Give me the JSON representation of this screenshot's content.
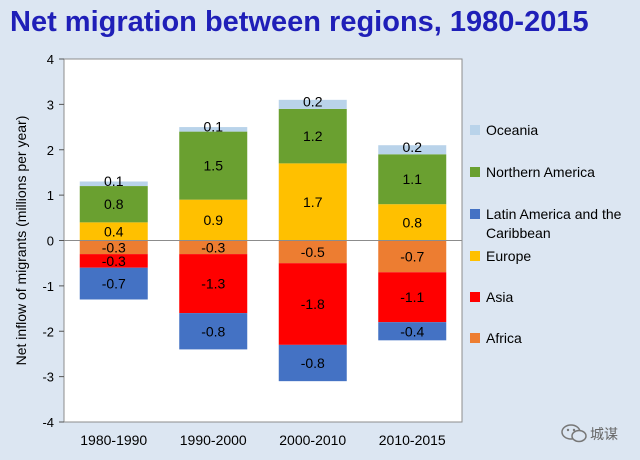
{
  "chart_data": {
    "type": "bar",
    "stacked": true,
    "title": "Net migration between regions, 1980-2015",
    "ylabel": "Net inflow of migrants (millions per year)",
    "xlabel": "",
    "ylim": [
      -4,
      4
    ],
    "yticks": [
      4,
      3,
      2,
      1,
      0,
      -1,
      -2,
      -3,
      -4
    ],
    "categories": [
      "1980-1990",
      "1990-2000",
      "2000-2010",
      "2010-2015"
    ],
    "series": [
      {
        "name": "Oceania",
        "color": "#b9d3ea",
        "values": [
          0.1,
          0.1,
          0.2,
          0.2
        ]
      },
      {
        "name": "Northern America",
        "color": "#6aa030",
        "values": [
          0.8,
          1.5,
          1.2,
          1.1
        ]
      },
      {
        "name": "Latin America and the Caribbean",
        "color": "#4472c4",
        "values": [
          -0.7,
          -0.8,
          -0.8,
          -0.4
        ]
      },
      {
        "name": "Europe",
        "color": "#ffc000",
        "values": [
          0.4,
          0.9,
          1.7,
          0.8
        ]
      },
      {
        "name": "Asia",
        "color": "#ff0000",
        "values": [
          -0.3,
          -1.3,
          -1.8,
          -1.1
        ]
      },
      {
        "name": "Africa",
        "color": "#ed7d31",
        "values": [
          -0.3,
          -0.3,
          -0.5,
          -0.7
        ]
      }
    ],
    "stack_order_positive": [
      "Europe",
      "Northern America",
      "Oceania"
    ],
    "stack_order_negative": [
      "Africa",
      "Asia",
      "Latin America and the Caribbean"
    ],
    "legend_position": "right",
    "grid": false
  },
  "watermark": {
    "text": "城谋"
  }
}
